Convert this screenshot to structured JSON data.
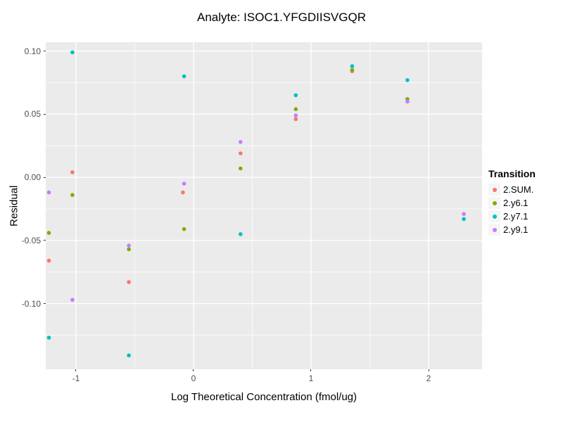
{
  "title": "Analyte: ISOC1.YFGDIISVGQR",
  "chart_data": {
    "type": "scatter",
    "title": "Analyte: ISOC1.YFGDIISVGQR",
    "xlabel": "Log Theoretical Concentration (fmol/ug)",
    "ylabel": "Residual",
    "legend_title": "Transition",
    "legend_position": "right",
    "grid": true,
    "panel_bg": "#EBEBEB",
    "grid_color": "#FFFFFF",
    "tick_label_color": "#4D4D4D",
    "xlim": [
      -1.257,
      2.455
    ],
    "ylim": [
      -0.152,
      0.107
    ],
    "x_ticks": [
      -1,
      0,
      1,
      2
    ],
    "x_tick_labels": [
      "-1",
      "0",
      "1",
      "2"
    ],
    "y_ticks": [
      0.1,
      0.05,
      0.0,
      -0.05,
      -0.1
    ],
    "y_tick_labels": [
      "0.10",
      "0.05",
      "0.00",
      "-0.05",
      "-0.10"
    ],
    "x_minor_ticks": [
      -0.5,
      0.5,
      1.5
    ],
    "y_minor_ticks": [
      0.075,
      0.025,
      -0.025,
      -0.075,
      -0.125
    ],
    "series": [
      {
        "name": "2.SUM.",
        "color": "#F8766D",
        "points": [
          [
            -1.23,
            -0.066
          ],
          [
            -1.03,
            0.004
          ],
          [
            -0.55,
            -0.083
          ],
          [
            -0.09,
            -0.012
          ],
          [
            0.4,
            0.019
          ],
          [
            0.87,
            0.046
          ],
          [
            1.35,
            0.084
          ]
        ]
      },
      {
        "name": "2.y6.1",
        "color": "#7CAE00",
        "points": [
          [
            -1.23,
            -0.044
          ],
          [
            -1.03,
            -0.014
          ],
          [
            -0.55,
            -0.057
          ],
          [
            -0.08,
            -0.041
          ],
          [
            0.4,
            0.007
          ],
          [
            0.87,
            0.054
          ],
          [
            1.35,
            0.085
          ],
          [
            1.82,
            0.062
          ]
        ]
      },
      {
        "name": "2.y7.1",
        "color": "#00BFC4",
        "points": [
          [
            -1.23,
            -0.127
          ],
          [
            -1.03,
            0.099
          ],
          [
            -0.55,
            -0.141
          ],
          [
            -0.08,
            0.08
          ],
          [
            0.4,
            -0.045
          ],
          [
            0.87,
            0.065
          ],
          [
            1.35,
            0.088
          ],
          [
            1.82,
            0.077
          ],
          [
            2.3,
            -0.033
          ]
        ]
      },
      {
        "name": "2.y9.1",
        "color": "#C77CFF",
        "points": [
          [
            -1.23,
            -0.012
          ],
          [
            -1.03,
            -0.097
          ],
          [
            -0.55,
            -0.054
          ],
          [
            -0.08,
            -0.005
          ],
          [
            0.4,
            0.028
          ],
          [
            0.87,
            0.049
          ],
          [
            1.82,
            0.06
          ],
          [
            2.3,
            -0.029
          ]
        ]
      }
    ]
  }
}
